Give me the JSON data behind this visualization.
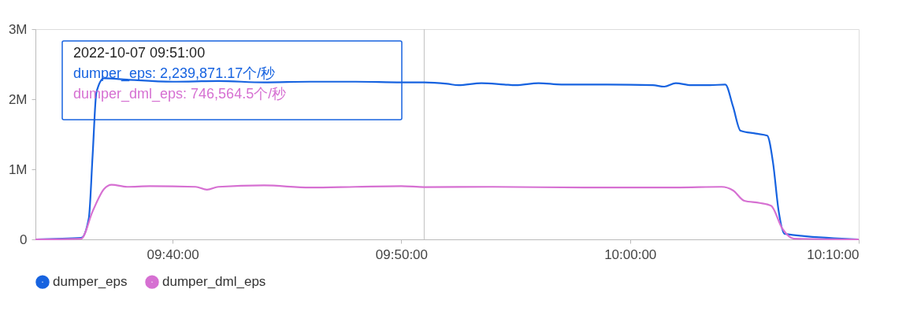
{
  "chart_data": {
    "type": "line",
    "xlim": [
      "2022-10-07T09:34",
      "2022-10-07T10:10"
    ],
    "xticks": [
      {
        "value": "2022-10-07T09:40",
        "label": "09:40:00"
      },
      {
        "value": "2022-10-07T09:50",
        "label": "09:50:00"
      },
      {
        "value": "2022-10-07T10:00",
        "label": "10:00:00"
      },
      {
        "value": "2022-10-07T10:10",
        "label": "10:10:00"
      }
    ],
    "ylim": [
      0,
      3000000
    ],
    "yticks": [
      0,
      {
        "value": 1000000,
        "label": "1M"
      },
      {
        "value": 2000000,
        "label": "2M"
      },
      {
        "value": 3000000,
        "label": "3M"
      }
    ],
    "grid": false,
    "legend": "bottom",
    "marker": "none",
    "line_style": "solid",
    "series": [
      {
        "name": "dumper_eps",
        "color": "#1763e0",
        "x": [
          "2022-10-07T09:34",
          "2022-10-07T09:36",
          "2022-10-07T09:36:20",
          "2022-10-07T09:36:30",
          "2022-10-07T09:36:40",
          "2022-10-07T09:37",
          "2022-10-07T09:38",
          "2022-10-07T09:40",
          "2022-10-07T09:42",
          "2022-10-07T09:44",
          "2022-10-07T09:46",
          "2022-10-07T09:48",
          "2022-10-07T09:50",
          "2022-10-07T09:51",
          "2022-10-07T09:52",
          "2022-10-07T09:52:30",
          "2022-10-07T09:53:30",
          "2022-10-07T09:54:30",
          "2022-10-07T09:55",
          "2022-10-07T09:56",
          "2022-10-07T09:57",
          "2022-10-07T09:59",
          "2022-10-07T10:01",
          "2022-10-07T10:01:30",
          "2022-10-07T10:02",
          "2022-10-07T10:02:40",
          "2022-10-07T10:03:30",
          "2022-10-07T10:04:10",
          "2022-10-07T10:04:30",
          "2022-10-07T10:04:50",
          "2022-10-07T10:05:30",
          "2022-10-07T10:06",
          "2022-10-07T10:06:15",
          "2022-10-07T10:06:30",
          "2022-10-07T10:06:45",
          "2022-10-07T10:10"
        ],
        "values": [
          0,
          20000,
          300000,
          1200000,
          2100000,
          2300000,
          2280000,
          2250000,
          2260000,
          2240000,
          2250000,
          2250000,
          2240000,
          2239871.17,
          2220000,
          2200000,
          2230000,
          2210000,
          2200000,
          2230000,
          2210000,
          2210000,
          2200000,
          2180000,
          2230000,
          2200000,
          2200000,
          2210000,
          1900000,
          1550000,
          1510000,
          1480000,
          1100000,
          400000,
          80000,
          0
        ]
      },
      {
        "name": "dumper_dml_eps",
        "color": "#d670d2",
        "x": [
          "2022-10-07T09:34",
          "2022-10-07T09:36",
          "2022-10-07T09:36:30",
          "2022-10-07T09:37",
          "2022-10-07T09:37:20",
          "2022-10-07T09:38",
          "2022-10-07T09:39",
          "2022-10-07T09:41",
          "2022-10-07T09:41:30",
          "2022-10-07T09:42",
          "2022-10-07T09:44",
          "2022-10-07T09:46",
          "2022-10-07T09:48",
          "2022-10-07T09:50",
          "2022-10-07T09:51",
          "2022-10-07T09:54",
          "2022-10-07T09:58",
          "2022-10-07T10:02",
          "2022-10-07T10:04",
          "2022-10-07T10:04:30",
          "2022-10-07T10:05",
          "2022-10-07T10:05:40",
          "2022-10-07T10:06:10",
          "2022-10-07T10:06:40",
          "2022-10-07T10:07:10",
          "2022-10-07T10:10"
        ],
        "values": [
          0,
          10000,
          400000,
          720000,
          780000,
          750000,
          760000,
          750000,
          710000,
          750000,
          770000,
          740000,
          750000,
          760000,
          746564.5,
          750000,
          740000,
          740000,
          750000,
          700000,
          550000,
          520000,
          480000,
          150000,
          10000,
          0
        ]
      }
    ],
    "ref_lines": [
      {
        "axis": "x",
        "value": "2022-10-07T09:51",
        "color": "#c8c8c8"
      }
    ],
    "annotations": [
      "2022-10-07 09:51:00",
      "dumper_eps: 2,239,871.17个/秒",
      "dumper_dml_eps: 746,564.5个/秒"
    ]
  }
}
